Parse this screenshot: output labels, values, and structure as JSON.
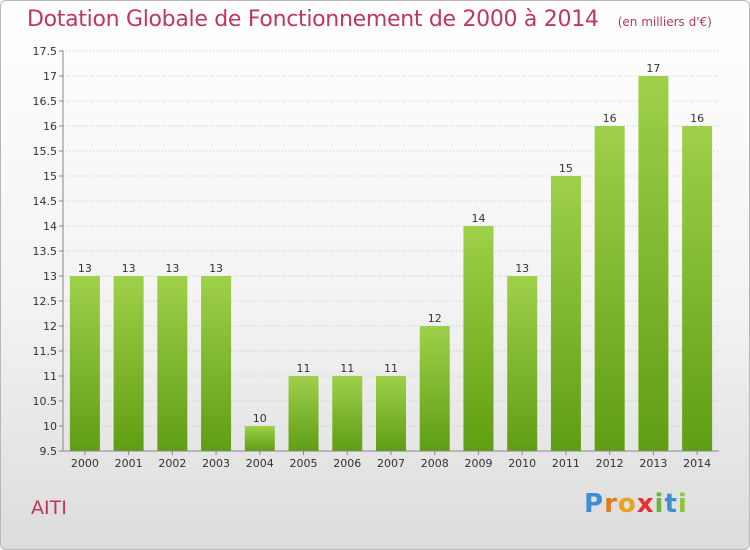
{
  "header": {
    "title": "Dotation Globale de Fonctionnement de 2000 à 2014",
    "unit": "(en milliers d'€)"
  },
  "commune": "AITI",
  "logo": {
    "letters": [
      "P",
      "r",
      "o",
      "x",
      "i",
      "t",
      "i"
    ]
  },
  "colors": {
    "title": "#c0365d",
    "bar_top": "#9fd04a",
    "bar_bottom": "#5f9e14"
  },
  "chart_data": {
    "type": "bar",
    "title": "Dotation Globale de Fonctionnement de 2000 à 2014",
    "xlabel": "",
    "ylabel": "",
    "ylim": [
      9.5,
      17.5
    ],
    "yticks": [
      "9.5",
      "10",
      "10.5",
      "11",
      "11.5",
      "12",
      "12.5",
      "13",
      "13.5",
      "14",
      "14.5",
      "15",
      "15.5",
      "16",
      "16.5",
      "17",
      "17.5"
    ],
    "categories": [
      "2000",
      "2001",
      "2002",
      "2003",
      "2004",
      "2005",
      "2006",
      "2007",
      "2008",
      "2009",
      "2010",
      "2011",
      "2012",
      "2013",
      "2014"
    ],
    "values": [
      13,
      13,
      13,
      13,
      10,
      11,
      11,
      11,
      12,
      14,
      13,
      15,
      16,
      17,
      16
    ],
    "grid": true,
    "legend": "none"
  }
}
